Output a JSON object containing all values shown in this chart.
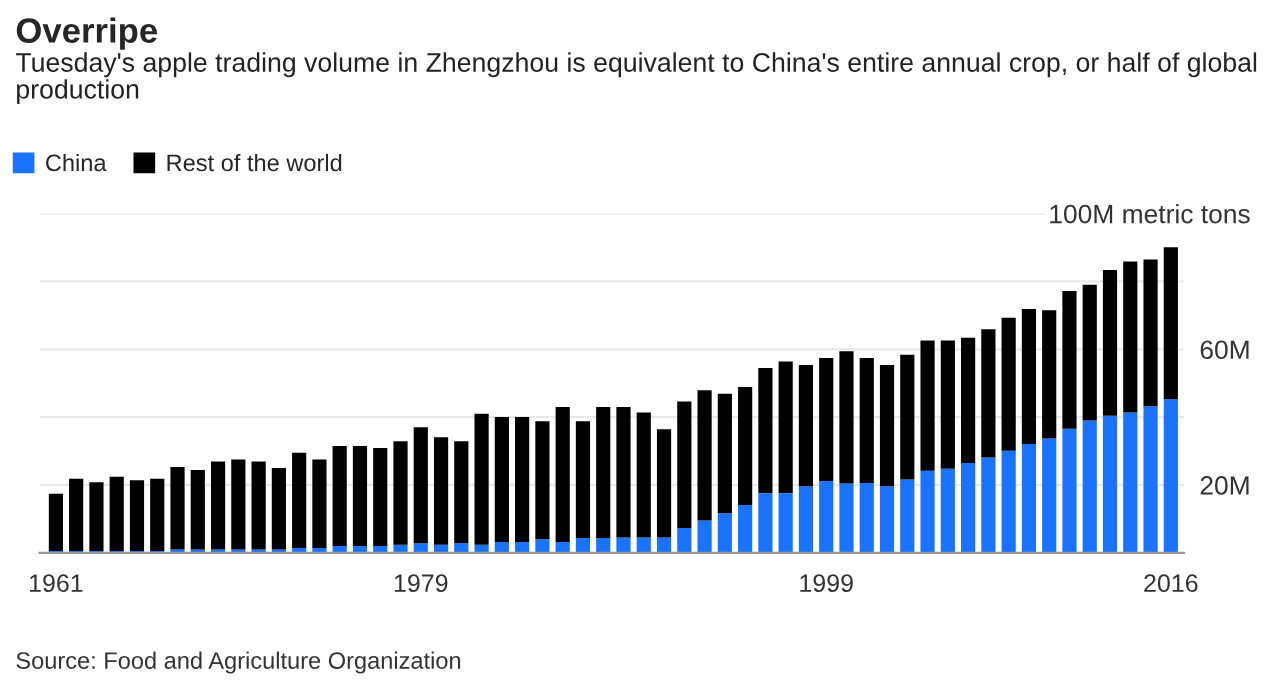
{
  "chart_data": {
    "type": "bar",
    "stacked": true,
    "title": "Overripe",
    "subtitle": "Tuesday's apple trading volume in Zhengzhou is equivalent to China's entire annual crop, or half of global production",
    "annotations": [
      "Source: Food and Agriculture Organization"
    ],
    "categories": [
      "1961",
      null,
      null,
      null,
      null,
      null,
      null,
      null,
      null,
      null,
      null,
      null,
      null,
      null,
      null,
      null,
      null,
      null,
      "1979",
      null,
      null,
      null,
      null,
      null,
      null,
      null,
      null,
      null,
      null,
      null,
      null,
      null,
      null,
      null,
      null,
      null,
      null,
      null,
      "1999",
      null,
      null,
      null,
      null,
      null,
      null,
      null,
      null,
      null,
      null,
      null,
      null,
      null,
      null,
      null,
      null,
      "2016"
    ],
    "series": [
      {
        "name": "China",
        "color": "#1a73ff",
        "values": [
          0.5,
          0.5,
          0.5,
          0.5,
          0.5,
          0.5,
          1,
          1,
          1,
          1,
          1,
          1,
          1.4,
          1.4,
          2,
          2,
          2,
          2.4,
          2.8,
          2.4,
          2.8,
          2.4,
          3.2,
          3.2,
          4,
          3.2,
          4.4,
          4.4,
          4.5,
          4.5,
          4.5,
          7.3,
          9.5,
          11.7,
          14.1,
          17.6,
          17.6,
          19.6,
          21.2,
          20.4,
          20.6,
          19.6,
          21.6,
          24.2,
          24.8,
          26.5,
          28.1,
          30.1,
          32.1,
          33.7,
          36.6,
          39.0,
          40.4,
          41.4,
          43.2,
          45.3
        ]
      },
      {
        "name": "Rest of the world",
        "color": "#000000",
        "values": [
          16.9,
          21.3,
          20.3,
          21.9,
          20.9,
          21.3,
          24.3,
          23.4,
          25.9,
          26.5,
          25.9,
          24.0,
          28.1,
          26.1,
          29.5,
          29.5,
          28.9,
          30.5,
          34.2,
          31.7,
          30.1,
          38.6,
          36.8,
          36.8,
          34.8,
          39.8,
          34.4,
          38.6,
          38.5,
          36.9,
          31.9,
          37.3,
          38.4,
          35.2,
          34.8,
          36.9,
          38.8,
          35.8,
          36.2,
          39.0,
          36.8,
          35.8,
          36.8,
          38.4,
          37.8,
          36.9,
          37.8,
          39.2,
          39.8,
          37.8,
          40.6,
          40.0,
          43.0,
          44.5,
          43.3,
          44.8
        ]
      }
    ],
    "ylim": [
      0,
      100
    ],
    "yticks": [
      {
        "value": 20,
        "label": "20M"
      },
      {
        "value": 40,
        "label": null
      },
      {
        "value": 60,
        "label": "60M"
      },
      {
        "value": 80,
        "label": null
      },
      {
        "value": 100,
        "label": "100M metric tons"
      }
    ],
    "grid": "y",
    "legend": "top left"
  }
}
